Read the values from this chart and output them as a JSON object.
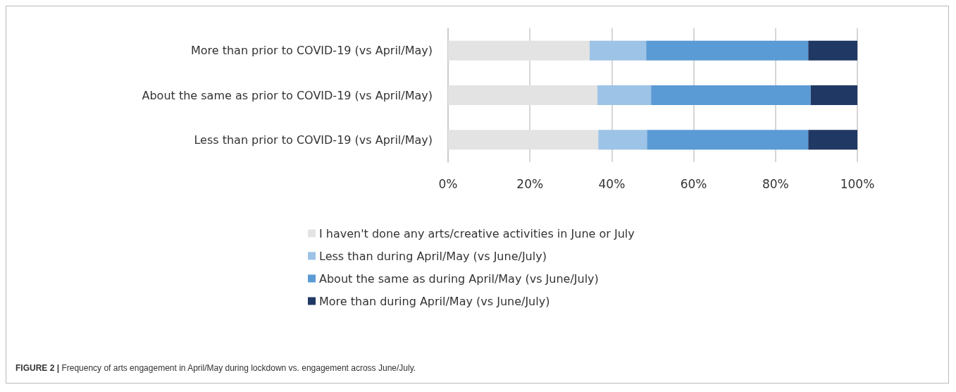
{
  "chart_data": {
    "type": "bar",
    "orientation": "horizontal",
    "stacked": true,
    "categories": [
      "More than prior to COVID-19 (vs April/May)",
      "About the same as prior to COVID-19 (vs April/May)",
      "Less than prior to COVID-19 (vs April/May)"
    ],
    "series": [
      {
        "name": "I haven't done any arts/creative activities in June or July",
        "color": "#e3e3e3",
        "values": [
          34.6,
          36.5,
          36.7
        ]
      },
      {
        "name": "Less than during April/May (vs June/July)",
        "color": "#9dc3e6",
        "values": [
          13.8,
          13.1,
          11.9
        ]
      },
      {
        "name": "About the same as during April/May (vs June/July)",
        "color": "#5b9bd5",
        "values": [
          39.6,
          39.0,
          39.4
        ]
      },
      {
        "name": "More than during April/May (vs June/July)",
        "color": "#203864",
        "values": [
          12.0,
          11.4,
          12.0
        ]
      }
    ],
    "xlim": [
      0,
      100
    ],
    "xticks": [
      {
        "value": 0,
        "label": "0%"
      },
      {
        "value": 20,
        "label": "20%"
      },
      {
        "value": 40,
        "label": "40%"
      },
      {
        "value": 60,
        "label": "60%"
      },
      {
        "value": 80,
        "label": "80%"
      },
      {
        "value": 100,
        "label": "100%"
      }
    ],
    "grid": "x",
    "legend": "bottom",
    "annotations": [
      "FIGURE 2 | Frequency of arts engagement in April/May during lockdown vs. engagement across June/July."
    ]
  }
}
